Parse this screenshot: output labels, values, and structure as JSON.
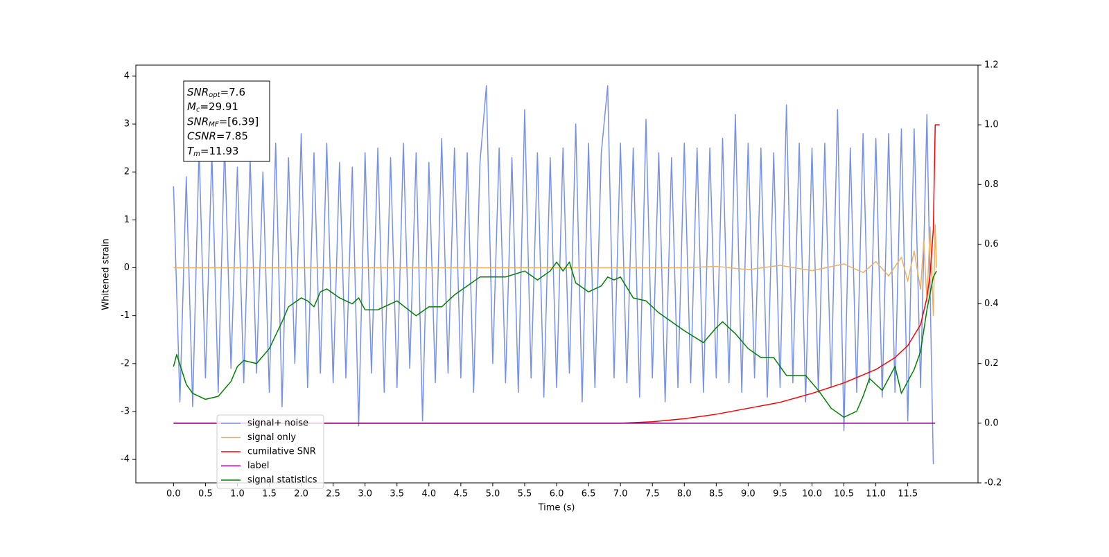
{
  "chart_data": {
    "type": "line",
    "xlabel": "Time (s)",
    "ylabel": "Whitened strain",
    "xlim": [
      -0.59,
      12.6
    ],
    "ylim": [
      -4.49,
      4.23
    ],
    "y2lim": [
      -0.2,
      1.2
    ],
    "xticks": [
      {
        "value": 0,
        "label": "0.0"
      },
      0.5,
      {
        "value": 1,
        "label": "1.0"
      },
      1.5,
      {
        "value": 2,
        "label": "2.0"
      },
      2.5,
      {
        "value": 3,
        "label": "3.0"
      },
      3.5,
      {
        "value": 4,
        "label": "4.0"
      },
      4.5,
      {
        "value": 5,
        "label": "5.0"
      },
      5.5,
      {
        "value": 6,
        "label": "6.0"
      },
      6.5,
      {
        "value": 7,
        "label": "7.0"
      },
      7.5,
      {
        "value": 8,
        "label": "8.0"
      },
      8.5,
      {
        "value": 9,
        "label": "9.0"
      },
      9.5,
      {
        "value": 10,
        "label": "10.0"
      },
      10.5,
      {
        "value": 11,
        "label": "11.0"
      },
      11.5
    ],
    "yticks": [
      -4,
      -3,
      -2,
      -1,
      0,
      1,
      2,
      3,
      4
    ],
    "y2ticks": [
      -0.2,
      {
        "value": 0,
        "label": "0.0"
      },
      0.2,
      0.4,
      0.6,
      0.8,
      {
        "value": 1,
        "label": "1.0"
      },
      1.2
    ],
    "legend": "lower left",
    "annotations": [
      {
        "base": "SNR",
        "sub": "opt",
        "text": "=7.6"
      },
      {
        "base": "M",
        "sub": "c",
        "text": "=29.91"
      },
      {
        "base": "SNR",
        "sub": "MF",
        "text": "=[6.39]"
      },
      {
        "base": "CSNR",
        "text": "=7.85"
      },
      {
        "base": "T",
        "sub": "m",
        "text": "=11.93"
      }
    ],
    "series": [
      {
        "name": "signal+ noise",
        "color": "#7691e6",
        "x": [
          0,
          0.1,
          0.2,
          0.3,
          0.4,
          0.5,
          0.6,
          0.7,
          0.8,
          0.9,
          1,
          1.1,
          1.2,
          1.3,
          1.4,
          1.5,
          1.6,
          1.7,
          1.8,
          1.9,
          2,
          2.1,
          2.2,
          2.3,
          2.4,
          2.5,
          2.6,
          2.7,
          2.8,
          2.9,
          3,
          3.1,
          3.2,
          3.3,
          3.4,
          3.5,
          3.6,
          3.7,
          3.8,
          3.9,
          4,
          4.1,
          4.2,
          4.3,
          4.4,
          4.5,
          4.6,
          4.7,
          4.8,
          4.9,
          5,
          5.1,
          5.2,
          5.3,
          5.4,
          5.5,
          5.6,
          5.7,
          5.8,
          5.9,
          6,
          6.1,
          6.2,
          6.3,
          6.4,
          6.5,
          6.6,
          6.7,
          6.8,
          6.9,
          7,
          7.1,
          7.2,
          7.3,
          7.4,
          7.5,
          7.6,
          7.7,
          7.8,
          7.9,
          8,
          8.1,
          8.2,
          8.3,
          8.4,
          8.5,
          8.6,
          8.7,
          8.8,
          8.9,
          9,
          9.1,
          9.2,
          9.3,
          9.4,
          9.5,
          9.6,
          9.7,
          9.8,
          9.9,
          10,
          10.1,
          10.2,
          10.3,
          10.4,
          10.5,
          10.6,
          10.7,
          10.8,
          10.9,
          11,
          11.1,
          11.2,
          11.3,
          11.4,
          11.5,
          11.6,
          11.7,
          11.8,
          11.9
        ],
        "values": [
          1.7,
          -2.8,
          1.9,
          -2.9,
          2.5,
          -2.3,
          2.4,
          -2.6,
          2.6,
          -2.1,
          2.1,
          -2.4,
          2.3,
          -2.2,
          2.0,
          -2.6,
          2.6,
          -2.9,
          2.3,
          -2.0,
          2.8,
          -2.5,
          2.4,
          -2.2,
          2.6,
          -2.4,
          2.2,
          -2.3,
          2.1,
          -3.3,
          2.4,
          -2.2,
          2.5,
          -2.6,
          2.3,
          -2.5,
          2.6,
          -2.1,
          2.4,
          -3.2,
          2.2,
          -2.4,
          2.7,
          -2.2,
          2.5,
          -2.3,
          2.4,
          -2.6,
          2.2,
          3.8,
          -2.0,
          2.5,
          -2.4,
          2.3,
          -2.6,
          3.3,
          -2.3,
          2.4,
          -2.7,
          2.3,
          -2.5,
          2.5,
          -2.2,
          3.0,
          -2.8,
          2.6,
          -2.5,
          2.4,
          3.8,
          -2.3,
          2.6,
          -2.4,
          2.5,
          -2.7,
          3.1,
          -2.3,
          2.4,
          -2.8,
          2.3,
          -2.5,
          2.6,
          -2.4,
          2.5,
          -2.6,
          2.5,
          -2.3,
          2.7,
          -2.4,
          3.2,
          -2.6,
          2.6,
          -2.3,
          2.5,
          -2.7,
          2.4,
          -2.5,
          3.4,
          -2.4,
          2.6,
          -2.8,
          2.5,
          -2.6,
          2.6,
          -2.5,
          3.3,
          -3.4,
          2.5,
          -2.6,
          2.8,
          -2.4,
          2.7,
          -2.7,
          2.8,
          -2.6,
          2.9,
          -3.2,
          2.9,
          -2.5,
          3.2,
          -4.1
        ]
      },
      {
        "name": "signal only",
        "color": "#f0b060",
        "x": [
          0,
          8,
          8.5,
          9,
          9.5,
          10,
          10.5,
          10.8,
          11,
          11.2,
          11.4,
          11.5,
          11.6,
          11.7,
          11.75,
          11.8,
          11.85,
          11.9,
          11.93,
          11.95
        ],
        "values": [
          0,
          0,
          0.03,
          -0.04,
          0.05,
          -0.06,
          0.08,
          -0.1,
          0.13,
          -0.17,
          0.22,
          -0.28,
          0.35,
          -0.45,
          0.55,
          -0.7,
          0.85,
          -1.0,
          0.9,
          0
        ]
      },
      {
        "name": "cumilative SNR",
        "color": "#ff0000",
        "axis": "y2",
        "x": [
          0,
          7,
          7.5,
          8,
          8.5,
          9,
          9.5,
          10,
          10.5,
          11,
          11.3,
          11.5,
          11.7,
          11.8,
          11.85,
          11.9,
          11.93,
          11.95,
          12
        ],
        "values": [
          0,
          0,
          0.005,
          0.015,
          0.03,
          0.05,
          0.07,
          0.1,
          0.135,
          0.18,
          0.22,
          0.26,
          0.33,
          0.42,
          0.5,
          0.65,
          1.0,
          1.0,
          1.0
        ]
      },
      {
        "name": "label",
        "color": "#800080",
        "axis": "y2",
        "x": [
          0,
          11.93
        ],
        "values": [
          0,
          0
        ]
      },
      {
        "name": "signal statistics",
        "color": "#008000",
        "axis": "y2",
        "x": [
          0,
          0.05,
          0.2,
          0.3,
          0.5,
          0.7,
          0.9,
          1,
          1.1,
          1.3,
          1.5,
          1.7,
          1.8,
          2,
          2.1,
          2.2,
          2.3,
          2.4,
          2.6,
          2.8,
          2.9,
          3,
          3.2,
          3.5,
          3.8,
          4,
          4.2,
          4.4,
          4.6,
          4.8,
          5,
          5.2,
          5.5,
          5.7,
          5.9,
          6,
          6.1,
          6.2,
          6.3,
          6.5,
          6.7,
          6.8,
          6.9,
          7,
          7.2,
          7.4,
          7.6,
          7.8,
          8,
          8.3,
          8.5,
          8.6,
          8.8,
          9,
          9.2,
          9.4,
          9.6,
          9.9,
          10.1,
          10.3,
          10.5,
          10.7,
          10.8,
          10.9,
          11.1,
          11.3,
          11.4,
          11.6,
          11.7,
          11.8,
          11.9,
          11.95
        ],
        "values": [
          0.19,
          0.23,
          0.13,
          0.1,
          0.08,
          0.09,
          0.14,
          0.19,
          0.21,
          0.2,
          0.25,
          0.34,
          0.39,
          0.42,
          0.41,
          0.39,
          0.44,
          0.45,
          0.42,
          0.4,
          0.42,
          0.38,
          0.38,
          0.41,
          0.36,
          0.39,
          0.39,
          0.43,
          0.46,
          0.49,
          0.49,
          0.49,
          0.51,
          0.48,
          0.51,
          0.54,
          0.51,
          0.54,
          0.47,
          0.44,
          0.46,
          0.49,
          0.48,
          0.49,
          0.42,
          0.41,
          0.37,
          0.34,
          0.31,
          0.27,
          0.32,
          0.34,
          0.3,
          0.25,
          0.22,
          0.22,
          0.16,
          0.16,
          0.11,
          0.05,
          0.02,
          0.04,
          0.09,
          0.15,
          0.11,
          0.19,
          0.1,
          0.18,
          0.24,
          0.38,
          0.49,
          0.51
        ]
      }
    ]
  }
}
